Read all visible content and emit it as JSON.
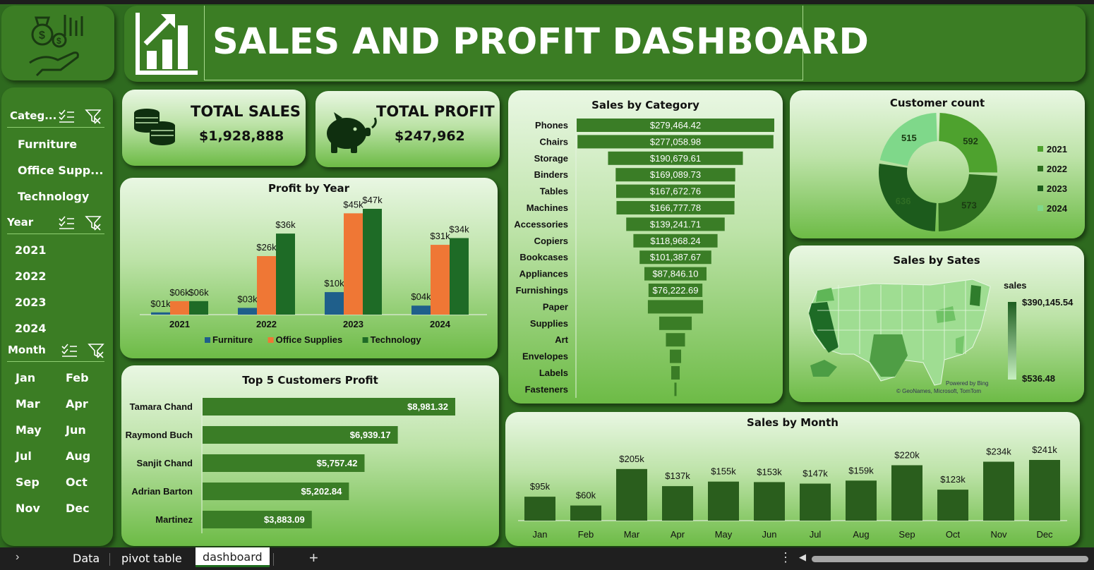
{
  "header": {
    "title": "SALES AND PROFIT DASHBOARD"
  },
  "colors": {
    "dark_green": "#3b7d24",
    "bar_green": "#1e6b26",
    "orange": "#ef7735",
    "blue": "#1f5f8b"
  },
  "slicers": {
    "category": {
      "title": "Categ...",
      "items": [
        "Furniture",
        "Office Supp...",
        "Technology"
      ]
    },
    "year": {
      "title": "Year",
      "items": [
        "2021",
        "2022",
        "2023",
        "2024"
      ]
    },
    "month": {
      "title": "Month",
      "items": [
        "Jan",
        "Feb",
        "Mar",
        "Apr",
        "May",
        "Jun",
        "Jul",
        "Aug",
        "Sep",
        "Oct",
        "Nov",
        "Dec"
      ]
    }
  },
  "kpis": {
    "total_sales": {
      "label": "TOTAL SALES",
      "value": "$1,928,888"
    },
    "total_profit": {
      "label": "TOTAL PROFIT",
      "value": "$247,962"
    }
  },
  "tabs": {
    "items": [
      "Data",
      "pivot table",
      "dashboard"
    ],
    "active": "dashboard",
    "add_label": "+"
  },
  "chart_data": [
    {
      "id": "profit_by_year",
      "type": "bar",
      "title": "Profit by Year",
      "categories": [
        "2021",
        "2022",
        "2023",
        "2024"
      ],
      "series": [
        {
          "name": "Furniture",
          "color": "#1f5f8b",
          "values": [
            1,
            3,
            10,
            4
          ],
          "labels": [
            "$01k",
            "$03k",
            "$10k",
            "$04k"
          ]
        },
        {
          "name": "Office Supplies",
          "color": "#ef7735",
          "values": [
            6,
            26,
            45,
            31
          ],
          "labels": [
            "$06k",
            "$26k",
            "$45k",
            "$31k"
          ]
        },
        {
          "name": "Technology",
          "color": "#1e6b26",
          "values": [
            6,
            36,
            47,
            34
          ],
          "labels": [
            "$06k",
            "$36k",
            "$47k",
            "$34k"
          ]
        }
      ],
      "legend": "bottom"
    },
    {
      "id": "sales_by_category",
      "type": "bar",
      "title": "Sales by Category",
      "categories": [
        "Phones",
        "Chairs",
        "Storage",
        "Binders",
        "Tables",
        "Machines",
        "Accessories",
        "Copiers",
        "Bookcases",
        "Appliances",
        "Furnishings",
        "Paper",
        "Supplies",
        "Art",
        "Envelopes",
        "Labels",
        "Fasteners"
      ],
      "values": [
        279464.42,
        277058.98,
        190679.61,
        169089.73,
        167672.76,
        166777.78,
        139241.71,
        118968.24,
        101387.67,
        87846.1,
        76222.69,
        78000,
        46000,
        27000,
        16000,
        12000,
        3000
      ],
      "labels": [
        "$279,464.42",
        "$277,058.98",
        "$190,679.61",
        "$169,089.73",
        "$167,672.76",
        "$166,777.78",
        "$139,241.71",
        "$118,968.24",
        "$101,387.67",
        "$87,846.10",
        "$76,222.69",
        "",
        "",
        "",
        "",
        "",
        ""
      ]
    },
    {
      "id": "customer_count",
      "type": "pie",
      "title": "Customer count",
      "categories": [
        "2021",
        "2022",
        "2023",
        "2024"
      ],
      "values": [
        592,
        573,
        636,
        515
      ],
      "colors": [
        "#4ea22e",
        "#2d6e1f",
        "#1c5b1c",
        "#7fd88a"
      ],
      "legend": "right"
    },
    {
      "id": "sales_by_month",
      "type": "bar",
      "title": "Sales by Month",
      "categories": [
        "Jan",
        "Feb",
        "Mar",
        "Apr",
        "May",
        "Jun",
        "Jul",
        "Aug",
        "Sep",
        "Oct",
        "Nov",
        "Dec"
      ],
      "values": [
        95,
        60,
        205,
        137,
        155,
        153,
        147,
        159,
        220,
        123,
        234,
        241
      ],
      "labels": [
        "$95k",
        "$60k",
        "$205k",
        "$137k",
        "$155k",
        "$153k",
        "$147k",
        "$159k",
        "$220k",
        "$123k",
        "$234k",
        "$241k"
      ]
    },
    {
      "id": "top5_customers",
      "type": "bar",
      "title": "Top 5 Customers Profit",
      "categories": [
        "Tamara Chand",
        "Raymond Buch",
        "Sanjit Chand",
        "Adrian Barton",
        "Martinez"
      ],
      "values": [
        8981.32,
        6939.17,
        5757.42,
        5202.84,
        3883.09
      ],
      "labels": [
        "$8,981.32",
        "$6,939.17",
        "$5,757.42",
        "$5,202.84",
        "$3,883.09"
      ]
    }
  ],
  "map": {
    "title": "Sales by Sates",
    "legend_title": "sales",
    "max_label": "$390,145.54",
    "min_label": "$536.48",
    "credit": "Powered by Bing",
    "attribution": "© GeoNames, Microsoft, TomTom"
  }
}
